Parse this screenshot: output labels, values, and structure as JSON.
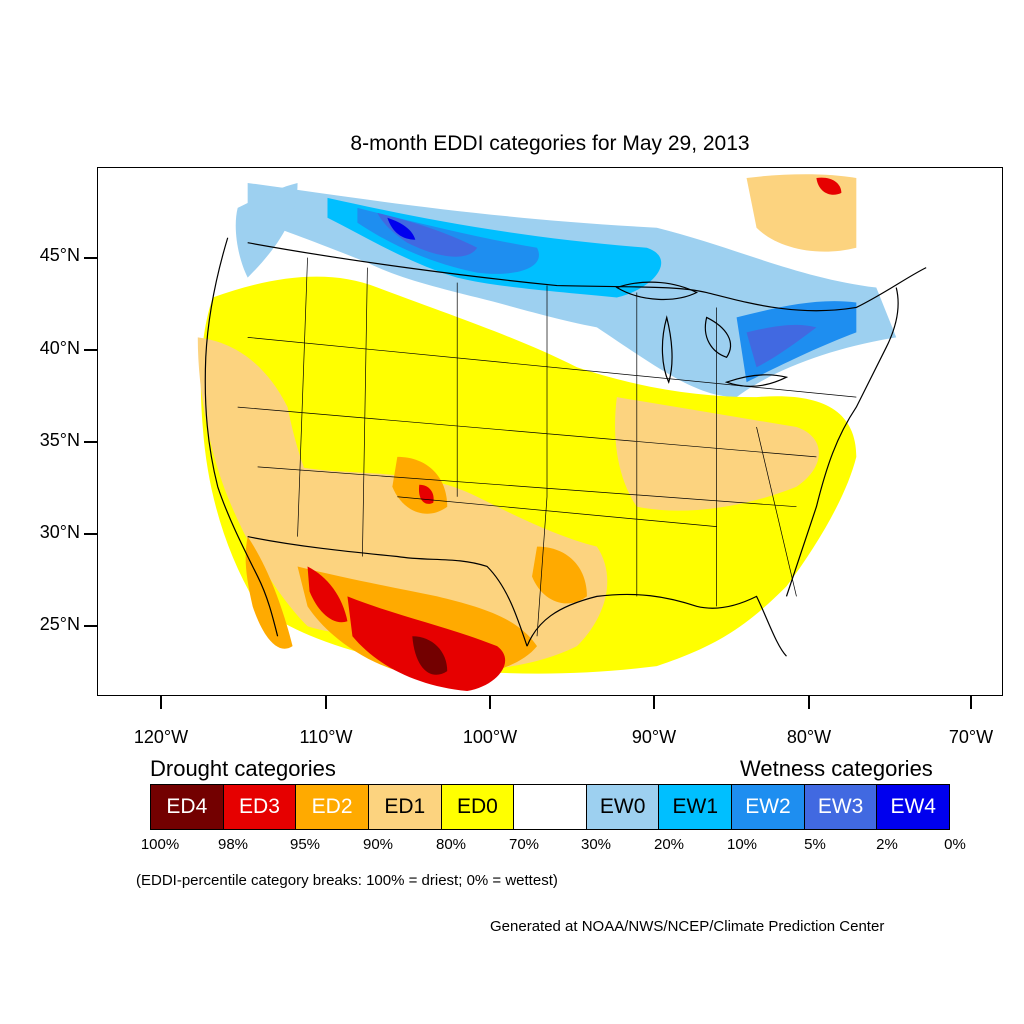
{
  "title": "8-month EDDI categories for May 29, 2013",
  "lat_labels": [
    "45°N",
    "40°N",
    "35°N",
    "30°N",
    "25°N"
  ],
  "lon_labels": [
    "120°W",
    "110°W",
    "100°W",
    "90°W",
    "80°W",
    "70°W"
  ],
  "legend": {
    "drought_heading": "Drought categories",
    "wetness_heading": "Wetness categories",
    "categories": [
      {
        "label": "ED4",
        "color": "#730000",
        "text_color": "#ffffff"
      },
      {
        "label": "ED3",
        "color": "#e60000",
        "text_color": "#ffffff"
      },
      {
        "label": "ED2",
        "color": "#ffaa00",
        "text_color": "#ffffff"
      },
      {
        "label": "ED1",
        "color": "#fcd37f",
        "text_color": "#000000"
      },
      {
        "label": "ED0",
        "color": "#ffff00",
        "text_color": "#000000"
      },
      {
        "label": "",
        "color": "#ffffff",
        "text_color": "#000000"
      },
      {
        "label": "EW0",
        "color": "#9dd0f0",
        "text_color": "#000000"
      },
      {
        "label": "EW1",
        "color": "#00bfff",
        "text_color": "#000000"
      },
      {
        "label": "EW2",
        "color": "#1e8ef0",
        "text_color": "#ffffff"
      },
      {
        "label": "EW3",
        "color": "#4169e1",
        "text_color": "#ffffff"
      },
      {
        "label": "EW4",
        "color": "#0000ee",
        "text_color": "#ffffff"
      }
    ],
    "percent_breaks": [
      "100%",
      "98%",
      "95%",
      "90%",
      "80%",
      "70%",
      "30%",
      "20%",
      "10%",
      "5%",
      "2%",
      "0%"
    ]
  },
  "note": "(EDDI-percentile category breaks: 100% = driest; 0% = wettest)",
  "credit": "Generated at NOAA/NWS/NCEP/Climate Prediction Center"
}
